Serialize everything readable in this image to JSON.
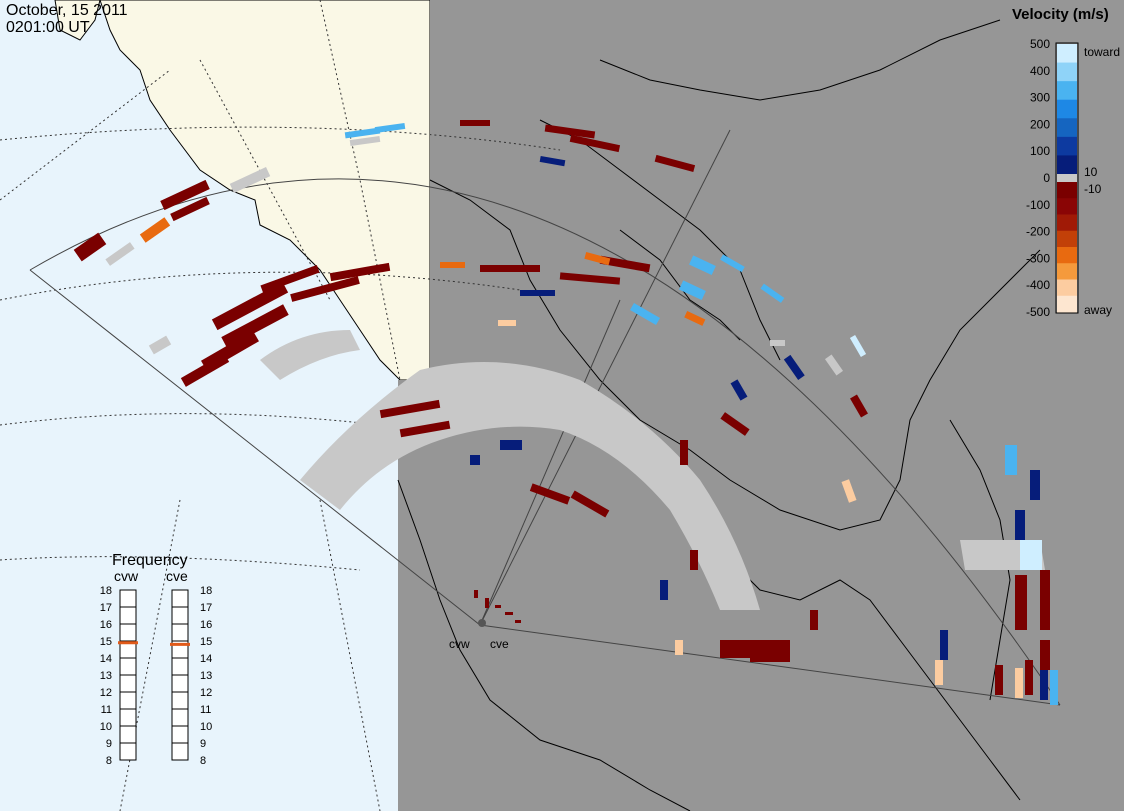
{
  "header": {
    "date": "October, 15 2011",
    "time": "0201:00 UT"
  },
  "radars": {
    "west": "cvw",
    "east": "cve"
  },
  "velocity_legend": {
    "title": "Velocity (m/s)",
    "toward_label": "toward",
    "away_label": "away",
    "ticks": [
      "500",
      "400",
      "300",
      "200",
      "100",
      "0",
      "-100",
      "-200",
      "-300",
      "-400",
      "-500"
    ],
    "mid_labels": [
      "10",
      "-10"
    ],
    "colors": {
      "toward": [
        "#cfeeff",
        "#8fd3f8",
        "#4ab3f0",
        "#1e88e5",
        "#1565c0",
        "#0d3aa0",
        "#061d7a"
      ],
      "away": [
        "#7a0000",
        "#8a0505",
        "#a01a06",
        "#c24008",
        "#e86a10",
        "#f59a3c",
        "#fccca0",
        "#fde6d0"
      ],
      "ground_scatter": "#c8c8c8"
    }
  },
  "frequency_panel": {
    "title": "Frequency",
    "scale_min": 8,
    "scale_max": 18,
    "tick_labels": [
      "18",
      "17",
      "16",
      "15",
      "14",
      "13",
      "12",
      "11",
      "10",
      "9",
      "8"
    ],
    "cvw_mhz": 14.9,
    "cve_mhz": 14.8,
    "marker_color": "#e05a1a"
  },
  "colors": {
    "ocean": "#e8f4fc",
    "land": "#faf8e6",
    "night": "#969696",
    "fov_line": "#444444"
  }
}
